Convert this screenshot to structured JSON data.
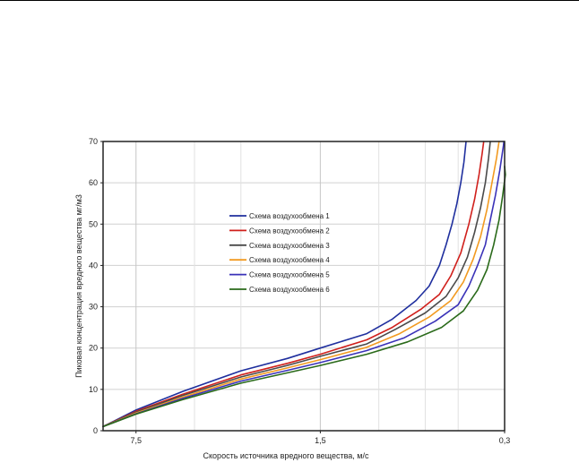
{
  "chart_data": {
    "type": "line",
    "title": "",
    "xlabel": "Скорость источника вредного вещества, м/с",
    "ylabel": "Пиковая концентрация вредного вещества мг/м3",
    "x_reversed": true,
    "x_ticks": [
      "7,5",
      "1,5",
      "0,3"
    ],
    "y_ticks": [
      "0",
      "10",
      "20",
      "30",
      "40",
      "50",
      "60",
      "70"
    ],
    "ylim": [
      0,
      70
    ],
    "grid": true,
    "legend_position": "center",
    "colors": {
      "series1": "#1f2f9e",
      "series2": "#d0201c",
      "series3": "#4a4a4a",
      "series4": "#f29a20",
      "series5": "#3a32b8",
      "series6": "#2a6a1a"
    },
    "series": [
      {
        "name": "Схема воздухообмена 1",
        "points": [
          [
            10.0,
            1
          ],
          [
            7.5,
            5
          ],
          [
            5.0,
            9.5
          ],
          [
            3.0,
            14.5
          ],
          [
            2.0,
            17.5
          ],
          [
            1.5,
            20
          ],
          [
            1.0,
            23.5
          ],
          [
            0.8,
            27
          ],
          [
            0.65,
            31.5
          ],
          [
            0.58,
            35
          ],
          [
            0.53,
            40
          ],
          [
            0.5,
            45
          ],
          [
            0.475,
            50
          ],
          [
            0.455,
            55
          ],
          [
            0.44,
            60
          ],
          [
            0.428,
            65
          ],
          [
            0.42,
            70
          ]
        ]
      },
      {
        "name": "Схема воздухообмена 2",
        "points": [
          [
            10.0,
            1
          ],
          [
            7.5,
            4.7
          ],
          [
            5.0,
            8.8
          ],
          [
            3.0,
            13.5
          ],
          [
            2.0,
            16.3
          ],
          [
            1.5,
            18.5
          ],
          [
            1.0,
            22
          ],
          [
            0.8,
            25
          ],
          [
            0.62,
            29.5
          ],
          [
            0.53,
            33
          ],
          [
            0.48,
            37.5
          ],
          [
            0.44,
            43
          ],
          [
            0.41,
            50
          ],
          [
            0.39,
            56
          ],
          [
            0.375,
            62
          ],
          [
            0.365,
            67
          ],
          [
            0.36,
            70
          ]
        ]
      },
      {
        "name": "Схема воздухообмена 3",
        "points": [
          [
            10.0,
            1
          ],
          [
            7.5,
            4.5
          ],
          [
            5.0,
            8.5
          ],
          [
            3.0,
            13
          ],
          [
            2.0,
            15.8
          ],
          [
            1.5,
            18
          ],
          [
            1.0,
            21
          ],
          [
            0.78,
            24.5
          ],
          [
            0.6,
            28.5
          ],
          [
            0.5,
            32.5
          ],
          [
            0.45,
            37
          ],
          [
            0.415,
            42
          ],
          [
            0.39,
            48
          ],
          [
            0.37,
            54
          ],
          [
            0.355,
            60
          ],
          [
            0.345,
            66
          ],
          [
            0.34,
            70
          ]
        ]
      },
      {
        "name": "Схема воздухообмена 4",
        "points": [
          [
            10.0,
            1
          ],
          [
            7.5,
            4.3
          ],
          [
            5.0,
            8.1
          ],
          [
            3.0,
            12.5
          ],
          [
            2.0,
            15.2
          ],
          [
            1.5,
            17.2
          ],
          [
            1.0,
            20.2
          ],
          [
            0.75,
            23.5
          ],
          [
            0.58,
            27.5
          ],
          [
            0.48,
            31.5
          ],
          [
            0.43,
            36
          ],
          [
            0.395,
            41.5
          ],
          [
            0.37,
            47
          ],
          [
            0.35,
            53.5
          ],
          [
            0.335,
            60
          ],
          [
            0.322,
            66
          ],
          [
            0.315,
            70
          ]
        ]
      },
      {
        "name": "Схема воздухообмена 5",
        "points": [
          [
            10.0,
            1
          ],
          [
            7.5,
            4.1
          ],
          [
            5.0,
            7.8
          ],
          [
            3.0,
            12
          ],
          [
            2.0,
            14.6
          ],
          [
            1.5,
            16.5
          ],
          [
            1.0,
            19.4
          ],
          [
            0.72,
            22.5
          ],
          [
            0.55,
            26.5
          ],
          [
            0.45,
            30.5
          ],
          [
            0.41,
            35
          ],
          [
            0.38,
            40
          ],
          [
            0.355,
            45
          ],
          [
            0.34,
            51
          ],
          [
            0.325,
            57
          ],
          [
            0.313,
            63
          ],
          [
            0.303,
            69
          ],
          [
            0.302,
            70
          ]
        ]
      },
      {
        "name": "Схема воздухообмена 6",
        "points": [
          [
            10.0,
            1
          ],
          [
            7.5,
            4.0
          ],
          [
            5.0,
            7.5
          ],
          [
            3.0,
            11.5
          ],
          [
            2.0,
            14
          ],
          [
            1.5,
            15.8
          ],
          [
            1.0,
            18.5
          ],
          [
            0.7,
            21.5
          ],
          [
            0.52,
            25
          ],
          [
            0.43,
            29
          ],
          [
            0.38,
            34
          ],
          [
            0.35,
            39
          ],
          [
            0.33,
            45
          ],
          [
            0.315,
            51
          ],
          [
            0.305,
            57
          ],
          [
            0.298,
            62
          ],
          [
            0.3,
            64
          ]
        ]
      }
    ]
  }
}
